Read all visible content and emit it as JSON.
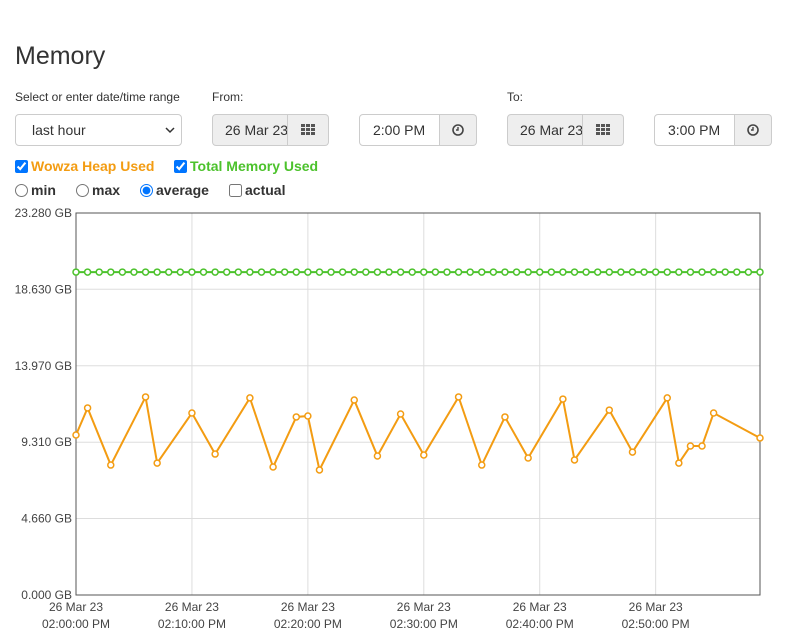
{
  "title": "Memory",
  "range_label": "Select or enter date/time range",
  "range_select": "last hour",
  "from": {
    "label": "From:",
    "date": "26 Mar 23",
    "time": "2:00 PM"
  },
  "to": {
    "label": "To:",
    "date": "26 Mar 23",
    "time": "3:00 PM"
  },
  "series_toggles": [
    {
      "label": "Wowza Heap Used",
      "checked": true
    },
    {
      "label": "Total Memory Used",
      "checked": true
    }
  ],
  "modes": [
    {
      "label": "min",
      "input": "radio",
      "checked": false
    },
    {
      "label": "max",
      "input": "radio",
      "checked": false
    },
    {
      "label": "average",
      "input": "radio",
      "checked": true
    },
    {
      "label": "actual",
      "input": "checkbox",
      "checked": false
    }
  ],
  "chart_data": {
    "type": "line",
    "xlim": [
      "02:00:00 PM",
      "02:59:00 PM"
    ],
    "xticks": [
      {
        "date": "26 Mar 23",
        "time": "02:00:00 PM"
      },
      {
        "date": "26 Mar 23",
        "time": "02:10:00 PM"
      },
      {
        "date": "26 Mar 23",
        "time": "02:20:00 PM"
      },
      {
        "date": "26 Mar 23",
        "time": "02:30:00 PM"
      },
      {
        "date": "26 Mar 23",
        "time": "02:40:00 PM"
      },
      {
        "date": "26 Mar 23",
        "time": "02:50:00 PM"
      }
    ],
    "ylim": [
      0,
      23.28
    ],
    "yticks": [
      {
        "value": 0,
        "label": "0.000 GB"
      },
      {
        "value": 4.66,
        "label": "4.660 GB"
      },
      {
        "value": 9.31,
        "label": "9.310 GB"
      },
      {
        "value": 13.97,
        "label": "13.970 GB"
      },
      {
        "value": 18.63,
        "label": "18.630 GB"
      },
      {
        "value": 23.28,
        "label": "23.280 GB"
      }
    ],
    "grid": true,
    "series": [
      {
        "name": "Wowza Heap Used",
        "color": "#f39c12",
        "x": [
          "02:00:00 PM",
          "02:01:00 PM",
          "02:03:00 PM",
          "02:06:00 PM",
          "02:07:00 PM",
          "02:10:00 PM",
          "02:12:00 PM",
          "02:15:00 PM",
          "02:17:00 PM",
          "02:19:00 PM",
          "02:20:00 PM",
          "02:21:00 PM",
          "02:24:00 PM",
          "02:26:00 PM",
          "02:28:00 PM",
          "02:30:00 PM",
          "02:33:00 PM",
          "02:35:00 PM",
          "02:37:00 PM",
          "02:39:00 PM",
          "02:42:00 PM",
          "02:43:00 PM",
          "02:46:00 PM",
          "02:48:00 PM",
          "02:51:00 PM",
          "02:52:00 PM",
          "02:53:00 PM",
          "02:54:00 PM",
          "02:55:00 PM",
          "02:59:00 PM"
        ],
        "values": [
          9.75,
          11.4,
          7.92,
          12.07,
          8.04,
          11.09,
          8.59,
          12.01,
          7.8,
          10.85,
          10.91,
          7.62,
          11.88,
          8.47,
          11.03,
          8.53,
          12.07,
          7.92,
          10.85,
          8.35,
          11.94,
          8.23,
          11.27,
          8.71,
          12.01,
          8.04,
          9.08,
          9.08,
          11.09,
          9.57
        ]
      },
      {
        "name": "Total Memory Used",
        "color": "#4cc22c",
        "x": [
          "02:00:00 PM",
          "02:01:00 PM",
          "02:02:00 PM",
          "02:03:00 PM",
          "02:04:00 PM",
          "02:05:00 PM",
          "02:06:00 PM",
          "02:07:00 PM",
          "02:08:00 PM",
          "02:09:00 PM",
          "02:10:00 PM",
          "02:11:00 PM",
          "02:12:00 PM",
          "02:13:00 PM",
          "02:14:00 PM",
          "02:15:00 PM",
          "02:16:00 PM",
          "02:17:00 PM",
          "02:18:00 PM",
          "02:19:00 PM",
          "02:20:00 PM",
          "02:21:00 PM",
          "02:22:00 PM",
          "02:23:00 PM",
          "02:24:00 PM",
          "02:25:00 PM",
          "02:26:00 PM",
          "02:27:00 PM",
          "02:28:00 PM",
          "02:29:00 PM",
          "02:30:00 PM",
          "02:31:00 PM",
          "02:32:00 PM",
          "02:33:00 PM",
          "02:34:00 PM",
          "02:35:00 PM",
          "02:36:00 PM",
          "02:37:00 PM",
          "02:38:00 PM",
          "02:39:00 PM",
          "02:40:00 PM",
          "02:41:00 PM",
          "02:42:00 PM",
          "02:43:00 PM",
          "02:44:00 PM",
          "02:45:00 PM",
          "02:46:00 PM",
          "02:47:00 PM",
          "02:48:00 PM",
          "02:49:00 PM",
          "02:50:00 PM",
          "02:51:00 PM",
          "02:52:00 PM",
          "02:53:00 PM",
          "02:54:00 PM",
          "02:55:00 PM",
          "02:56:00 PM",
          "02:57:00 PM",
          "02:58:00 PM",
          "02:59:00 PM"
        ],
        "values": [
          19.68,
          19.68,
          19.68,
          19.68,
          19.68,
          19.68,
          19.68,
          19.68,
          19.68,
          19.68,
          19.68,
          19.68,
          19.68,
          19.68,
          19.68,
          19.68,
          19.68,
          19.68,
          19.68,
          19.68,
          19.68,
          19.68,
          19.68,
          19.68,
          19.68,
          19.68,
          19.68,
          19.68,
          19.68,
          19.68,
          19.68,
          19.68,
          19.68,
          19.68,
          19.68,
          19.68,
          19.68,
          19.68,
          19.68,
          19.68,
          19.68,
          19.68,
          19.68,
          19.68,
          19.68,
          19.68,
          19.68,
          19.68,
          19.68,
          19.68,
          19.68,
          19.68,
          19.68,
          19.68,
          19.68,
          19.68,
          19.68,
          19.68,
          19.68,
          19.68
        ]
      }
    ]
  }
}
